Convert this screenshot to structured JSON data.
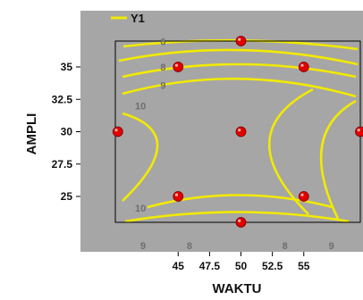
{
  "chart_data": {
    "type": "contour",
    "xlabel": "WAKTU",
    "ylabel": "AMPLI",
    "x_ticks": [
      45,
      47.5,
      50,
      52.5,
      55
    ],
    "y_ticks": [
      25,
      27.5,
      30,
      32.5,
      35
    ],
    "x_tick_labels": [
      "45",
      "47.5",
      "50",
      "52.5",
      "55"
    ],
    "y_tick_labels": [
      "25",
      "27.5",
      "30",
      "32.5",
      "35"
    ],
    "xlim": [
      40,
      59.5
    ],
    "ylim": [
      23,
      37
    ],
    "background_color": "#a6a6a6",
    "contour_color": "#f2ea00",
    "point_color": "#e00000",
    "legend": {
      "entries": [
        "Y1"
      ],
      "placement": "top-left"
    },
    "contour_labels": [
      {
        "text": "6",
        "x": 43.8,
        "y": 36.95
      },
      {
        "text": "8",
        "x": 43.8,
        "y": 35.0
      },
      {
        "text": "9",
        "x": 43.8,
        "y": 33.6
      },
      {
        "text": "10",
        "x": 42.0,
        "y": 32.0
      },
      {
        "text": "10",
        "x": 42.0,
        "y": 24.1
      },
      {
        "text": "9",
        "x": 42.2,
        "y": 21.2
      },
      {
        "text": "8",
        "x": 45.9,
        "y": 21.2
      },
      {
        "text": "8",
        "x": 53.5,
        "y": 21.2
      },
      {
        "text": "9",
        "x": 57.2,
        "y": 21.2
      }
    ],
    "points": [
      {
        "x": 50,
        "y": 37
      },
      {
        "x": 45,
        "y": 35
      },
      {
        "x": 55,
        "y": 35
      },
      {
        "x": 40.2,
        "y": 30
      },
      {
        "x": 50,
        "y": 30
      },
      {
        "x": 59.5,
        "y": 30
      },
      {
        "x": 45,
        "y": 25
      },
      {
        "x": 55,
        "y": 25
      },
      {
        "x": 50,
        "y": 23
      }
    ]
  }
}
